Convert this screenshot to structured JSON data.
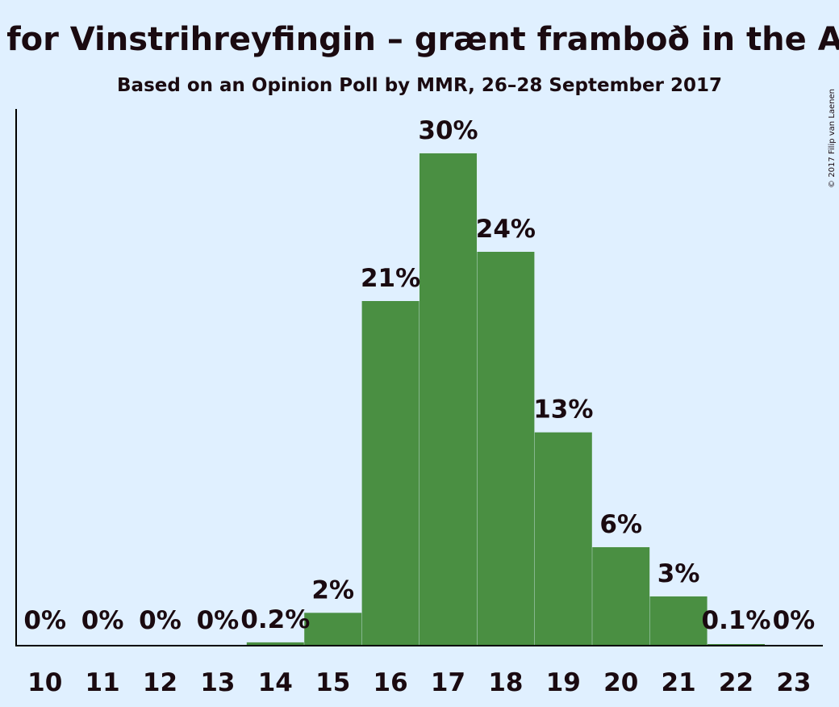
{
  "chart_data": {
    "type": "bar",
    "title": "Seats for Vinstrihreyfingin – grænt framboð in the Alþingi",
    "subtitle": "Based on an Opinion Poll by MMR, 26–28 September 2017",
    "copyright": "© 2017 Filip van Laenen",
    "categories": [
      "10",
      "11",
      "12",
      "13",
      "14",
      "15",
      "16",
      "17",
      "18",
      "19",
      "20",
      "21",
      "22",
      "23"
    ],
    "values": [
      0,
      0,
      0,
      0,
      0.2,
      2,
      21,
      30,
      24,
      13,
      6,
      3,
      0.1,
      0
    ],
    "labels": [
      "0%",
      "0%",
      "0%",
      "0%",
      "0.2%",
      "2%",
      "21%",
      "30%",
      "24%",
      "13%",
      "6%",
      "3%",
      "0.1%",
      "0%"
    ],
    "ylim": [
      0,
      30
    ],
    "xlabel": "",
    "ylabel": "",
    "bar_color": "#4a8f42",
    "background_color": "#E0F0FF",
    "text_color": "#1a0a10"
  }
}
